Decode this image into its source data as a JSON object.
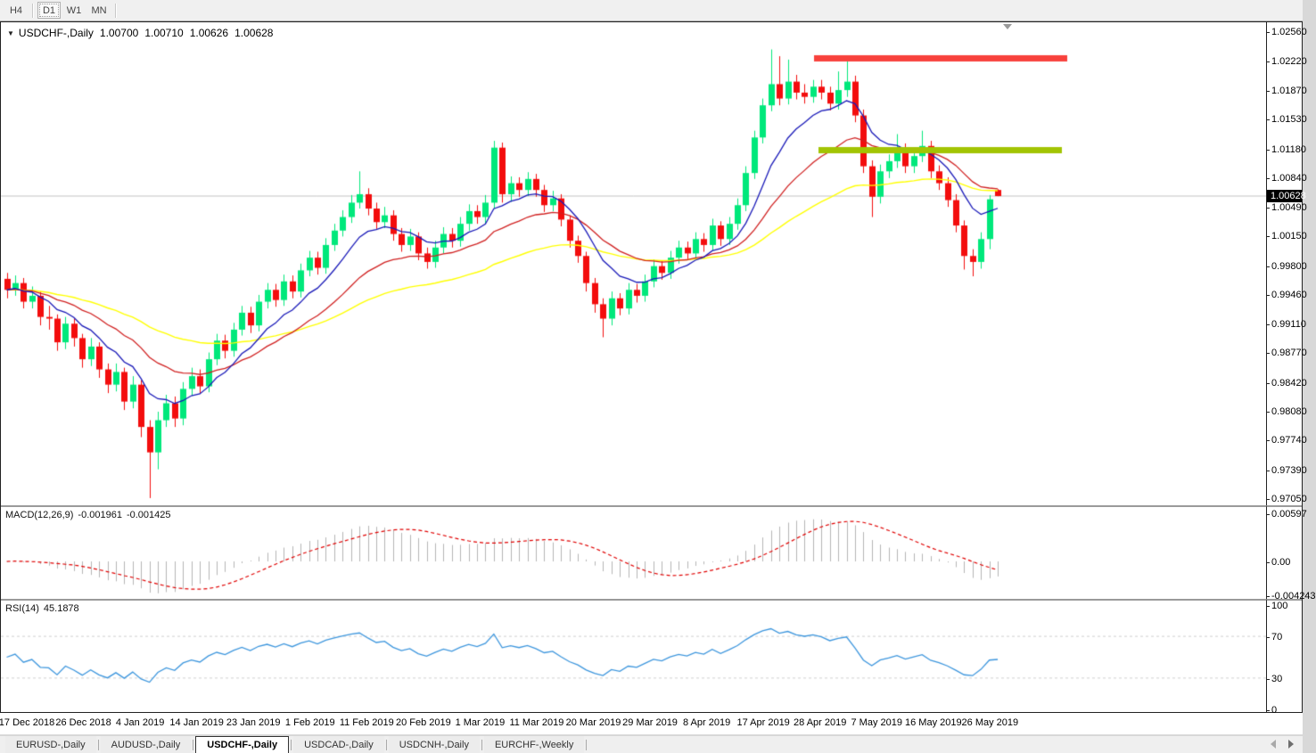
{
  "toolbar": {
    "timeframes": [
      {
        "label": "H4",
        "active": false
      },
      {
        "label": "D1",
        "active": true
      },
      {
        "label": "W1",
        "active": false
      },
      {
        "label": "MN",
        "active": false
      }
    ]
  },
  "chart": {
    "title": "USDCHF-,Daily",
    "ohlc": {
      "open": "1.00700",
      "high": "1.00710",
      "low": "1.00626",
      "close": "1.00628"
    },
    "current_price": "1.00628"
  },
  "indicator_labels": {
    "macd": {
      "name": "MACD(12,26,9)",
      "main": "-0.001961",
      "signal": "-0.001425"
    },
    "rsi": {
      "name": "RSI(14)",
      "value": "45.1878"
    }
  },
  "tabs": {
    "items": [
      {
        "label": "EURUSD-,Daily",
        "active": false
      },
      {
        "label": "AUDUSD-,Daily",
        "active": false
      },
      {
        "label": "USDCHF-,Daily",
        "active": true
      },
      {
        "label": "USDCAD-,Daily",
        "active": false
      },
      {
        "label": "USDCNH-,Daily",
        "active": false
      },
      {
        "label": "EURCHF-,Weekly",
        "active": false
      }
    ]
  },
  "colors": {
    "candle_up": "#00e87b",
    "candle_down": "#f30d0d",
    "ma_fast": "#1a1ab8",
    "ma_mid": "#d02020",
    "ma_slow": "#ffff00",
    "macd_hist": "#b4b4b4",
    "macd_signal": "#e00000",
    "rsi_line": "#3d96dd",
    "level_dashed": "#cfcfcf",
    "price_line": "#c0c0c0",
    "tag_bg": "#000000",
    "tag_fg": "#ffffff",
    "resistance": "#f8413c",
    "support": "#a2c403"
  },
  "chart_data": {
    "type": "candlestick",
    "symbol": "USDCHF",
    "timeframe": "Daily",
    "ylim": [
      0.96975,
      1.02681
    ],
    "price_line": 1.00628,
    "overlays": {
      "ma_fast_period": 9,
      "ma_mid_period": 21,
      "ma_slow_period": 48
    },
    "indicators": {
      "macd": {
        "fast": 12,
        "slow": 26,
        "signal": 9,
        "last_main": -0.001961,
        "last_signal": -0.001425
      },
      "rsi": {
        "period": 14,
        "last_value": 45.1878,
        "levels": [
          70,
          30
        ]
      }
    },
    "levels": [
      {
        "type": "resistance",
        "price": 1.02255,
        "x1": 912,
        "x2": 1196,
        "thickness": 7,
        "color": "#f8413c"
      },
      {
        "type": "support",
        "price": 1.0117,
        "x1": 917,
        "x2": 1190,
        "thickness": 7,
        "color": "#a2c403"
      }
    ],
    "axes": {
      "price": [
        "1.02560",
        "1.02220",
        "1.01870",
        "1.01530",
        "1.01180",
        "1.00840",
        "1.00490",
        "1.00150",
        "0.99800",
        "0.99460",
        "0.99110",
        "0.98770",
        "0.98420",
        "0.98080",
        "0.97740",
        "0.97390",
        "0.97050"
      ],
      "macd": [
        {
          "t": "0.00597",
          "v": 0.00597
        },
        {
          "t": "0.00",
          "v": 0
        },
        {
          "t": "-0.004243",
          "v": -0.004243
        }
      ],
      "rsi": [
        {
          "t": "100",
          "v": 100
        },
        {
          "t": "70",
          "v": 70
        },
        {
          "t": "30",
          "v": 30
        },
        {
          "t": "0",
          "v": 0
        }
      ],
      "dates": [
        "17 Dec 2018",
        "26 Dec 2018",
        "4 Jan 2019",
        "14 Jan 2019",
        "23 Jan 2019",
        "1 Feb 2019",
        "11 Feb 2019",
        "20 Feb 2019",
        "1 Mar 2019",
        "11 Mar 2019",
        "20 Mar 2019",
        "29 Mar 2019",
        "8 Apr 2019",
        "17 Apr 2019",
        "28 Apr 2019",
        "7 May 2019",
        "16 May 2019",
        "26 May 2019"
      ]
    },
    "candles": [
      [
        0.9965,
        0.9972,
        0.9942,
        0.9952
      ],
      [
        0.9952,
        0.9969,
        0.9945,
        0.996
      ],
      [
        0.996,
        0.9966,
        0.993,
        0.9938
      ],
      [
        0.9938,
        0.9956,
        0.993,
        0.9945
      ],
      [
        0.9945,
        0.995,
        0.991,
        0.992
      ],
      [
        0.992,
        0.9933,
        0.9905,
        0.9918
      ],
      [
        0.9918,
        0.9923,
        0.988,
        0.989
      ],
      [
        0.989,
        0.992,
        0.9882,
        0.9912
      ],
      [
        0.9912,
        0.9918,
        0.9885,
        0.9895
      ],
      [
        0.9895,
        0.99,
        0.986,
        0.987
      ],
      [
        0.987,
        0.9895,
        0.9862,
        0.9885
      ],
      [
        0.9885,
        0.989,
        0.9848,
        0.9858
      ],
      [
        0.9858,
        0.9865,
        0.983,
        0.984
      ],
      [
        0.984,
        0.9865,
        0.9832,
        0.9855
      ],
      [
        0.9855,
        0.986,
        0.981,
        0.982
      ],
      [
        0.982,
        0.985,
        0.9812,
        0.984
      ],
      [
        0.984,
        0.9845,
        0.9778,
        0.979
      ],
      [
        0.979,
        0.9798,
        0.9706,
        0.976
      ],
      [
        0.976,
        0.9808,
        0.974,
        0.9798
      ],
      [
        0.9798,
        0.9828,
        0.979,
        0.9818
      ],
      [
        0.9818,
        0.9826,
        0.979,
        0.98
      ],
      [
        0.98,
        0.9843,
        0.9792,
        0.9835
      ],
      [
        0.9835,
        0.986,
        0.9827,
        0.985
      ],
      [
        0.985,
        0.9858,
        0.983,
        0.9838
      ],
      [
        0.9838,
        0.9878,
        0.9831,
        0.987
      ],
      [
        0.987,
        0.99,
        0.9863,
        0.9892
      ],
      [
        0.9892,
        0.9899,
        0.9871,
        0.988
      ],
      [
        0.988,
        0.9913,
        0.9873,
        0.9905
      ],
      [
        0.9905,
        0.9933,
        0.9898,
        0.9925
      ],
      [
        0.9925,
        0.9932,
        0.9901,
        0.991
      ],
      [
        0.991,
        0.9946,
        0.9903,
        0.9938
      ],
      [
        0.9938,
        0.996,
        0.993,
        0.9952
      ],
      [
        0.9952,
        0.9959,
        0.9932,
        0.994
      ],
      [
        0.994,
        0.997,
        0.9933,
        0.9962
      ],
      [
        0.9962,
        0.9969,
        0.9942,
        0.995
      ],
      [
        0.995,
        0.9983,
        0.9943,
        0.9975
      ],
      [
        0.9975,
        0.9998,
        0.9968,
        0.999
      ],
      [
        0.999,
        0.9997,
        0.997,
        0.9978
      ],
      [
        0.9978,
        1.0013,
        0.9971,
        1.0005
      ],
      [
        1.0005,
        1.003,
        0.9998,
        1.0022
      ],
      [
        1.0022,
        1.0046,
        1.0015,
        1.0038
      ],
      [
        1.0038,
        1.0064,
        1.0031,
        1.0055
      ],
      [
        1.0055,
        1.0092,
        1.0048,
        1.0065
      ],
      [
        1.0065,
        1.0072,
        1.004,
        1.0048
      ],
      [
        1.0048,
        1.0055,
        1.0024,
        1.0032
      ],
      [
        1.0032,
        1.005,
        1.0025,
        1.004
      ],
      [
        1.004,
        1.0046,
        1.001,
        1.0018
      ],
      [
        1.0018,
        1.0025,
        0.9997,
        1.0005
      ],
      [
        1.0005,
        1.0024,
        0.9998,
        1.0015
      ],
      [
        1.0015,
        1.002,
        0.9987,
        0.9995
      ],
      [
        0.9995,
        1.0002,
        0.9977,
        0.9985
      ],
      [
        0.9985,
        1.001,
        0.9978,
        1.0002
      ],
      [
        1.0002,
        1.0026,
        0.9995,
        1.0018
      ],
      [
        1.0018,
        1.0025,
        1.0002,
        1.001
      ],
      [
        1.001,
        1.0038,
        1.0003,
        1.003
      ],
      [
        1.003,
        1.0053,
        1.0022,
        1.0045
      ],
      [
        1.0045,
        1.0052,
        1.003,
        1.0038
      ],
      [
        1.0038,
        1.0064,
        1.003,
        1.0055
      ],
      [
        1.0055,
        1.0128,
        1.0048,
        1.012
      ],
      [
        1.012,
        1.0126,
        1.0055,
        1.0065
      ],
      [
        1.0065,
        1.0086,
        1.0056,
        1.0078
      ],
      [
        1.0078,
        1.0085,
        1.0062,
        1.007
      ],
      [
        1.007,
        1.0091,
        1.0063,
        1.0083
      ],
      [
        1.0083,
        1.0089,
        1.0062,
        1.007
      ],
      [
        1.007,
        1.0076,
        1.0044,
        1.0052
      ],
      [
        1.0052,
        1.0069,
        1.0045,
        1.006
      ],
      [
        1.006,
        1.0065,
        1.0027,
        1.0035
      ],
      [
        1.0035,
        1.004,
        1.0002,
        1.001
      ],
      [
        1.001,
        1.0016,
        0.9984,
        0.9992
      ],
      [
        0.9992,
        0.9997,
        0.995,
        0.996
      ],
      [
        0.996,
        0.9966,
        0.9925,
        0.9935
      ],
      [
        0.9935,
        0.9942,
        0.9896,
        0.9918
      ],
      [
        0.9918,
        0.995,
        0.991,
        0.9942
      ],
      [
        0.9942,
        0.9948,
        0.9922,
        0.993
      ],
      [
        0.993,
        0.996,
        0.9923,
        0.9952
      ],
      [
        0.9952,
        0.9959,
        0.9937,
        0.9945
      ],
      [
        0.9945,
        0.997,
        0.9938,
        0.9962
      ],
      [
        0.9962,
        0.9988,
        0.9955,
        0.998
      ],
      [
        0.998,
        0.9987,
        0.9964,
        0.9972
      ],
      [
        0.9972,
        0.9998,
        0.9965,
        0.999
      ],
      [
        0.999,
        1.001,
        0.9983,
        1.0002
      ],
      [
        1.0002,
        1.0009,
        0.9987,
        0.9995
      ],
      [
        0.9995,
        1.002,
        0.9988,
        1.0012
      ],
      [
        1.0012,
        1.0019,
        0.9997,
        1.0005
      ],
      [
        1.0005,
        1.0036,
        0.9998,
        1.0028
      ],
      [
        1.0028,
        1.0033,
        1.0004,
        1.0012
      ],
      [
        1.0012,
        1.0038,
        1.0005,
        1.003
      ],
      [
        1.003,
        1.006,
        1.0023,
        1.0052
      ],
      [
        1.0052,
        1.0098,
        1.0045,
        1.009
      ],
      [
        1.009,
        1.014,
        1.0083,
        1.0132
      ],
      [
        1.0132,
        1.0178,
        1.0125,
        1.017
      ],
      [
        1.017,
        1.0236,
        1.0163,
        1.0195
      ],
      [
        1.0195,
        1.0228,
        1.017,
        1.0178
      ],
      [
        1.0178,
        1.0224,
        1.0171,
        1.0198
      ],
      [
        1.0198,
        1.0206,
        1.0177,
        1.0185
      ],
      [
        1.0185,
        1.0195,
        1.0172,
        1.018
      ],
      [
        1.018,
        1.02,
        1.0173,
        1.0192
      ],
      [
        1.0192,
        1.02,
        1.0177,
        1.0185
      ],
      [
        1.0185,
        1.0192,
        1.0164,
        1.0172
      ],
      [
        1.0172,
        1.021,
        1.0165,
        1.0188
      ],
      [
        1.0188,
        1.0222,
        1.018,
        1.0198
      ],
      [
        1.0198,
        1.0205,
        1.015,
        1.0158
      ],
      [
        1.0158,
        1.0165,
        1.009,
        1.0098
      ],
      [
        1.0098,
        1.0105,
        1.0038,
        1.0062
      ],
      [
        1.0062,
        1.01,
        1.0054,
        1.0092
      ],
      [
        1.0092,
        1.0112,
        1.0084,
        1.0104
      ],
      [
        1.0104,
        1.0136,
        1.0096,
        1.0118
      ],
      [
        1.0118,
        1.0125,
        1.009,
        1.0098
      ],
      [
        1.0098,
        1.0118,
        1.009,
        1.011
      ],
      [
        1.011,
        1.014,
        1.0103,
        1.0122
      ],
      [
        1.0122,
        1.0128,
        1.0084,
        1.0092
      ],
      [
        1.0092,
        1.0099,
        1.007,
        1.0078
      ],
      [
        1.0078,
        1.0085,
        1.005,
        1.0058
      ],
      [
        1.0058,
        1.0065,
        1.002,
        1.0028
      ],
      [
        1.0028,
        1.0034,
        0.9976,
        0.9992
      ],
      [
        0.9992,
        1.0,
        0.9968,
        0.9985
      ],
      [
        0.9985,
        1.002,
        0.9977,
        1.0012
      ],
      [
        1.0012,
        1.0064,
        1.0,
        1.0059
      ],
      [
        1.007,
        1.0071,
        1.00626,
        1.00628
      ]
    ]
  }
}
